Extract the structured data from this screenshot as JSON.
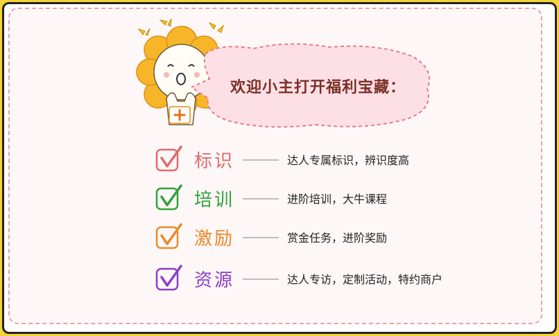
{
  "bubble_text": "欢迎小主打开福利宝藏：",
  "colors": {
    "background": "#f5d33a",
    "card_border": "#e7a2a6",
    "bubble_fill": "#fde0e6",
    "bubble_border": "#e87a8c"
  },
  "benefits": [
    {
      "title": "标识",
      "desc": "达人专属标识，辨识度高",
      "color": "#e06b6b",
      "icon": "check-box-icon"
    },
    {
      "title": "培训",
      "desc": "进阶培训，大牛课程",
      "color": "#2fa33a",
      "icon": "check-box-icon"
    },
    {
      "title": "激励",
      "desc": "赏金任务，进阶奖励",
      "color": "#ea8a2a",
      "icon": "check-box-icon"
    },
    {
      "title": "资源",
      "desc": "达人专访，定制活动，特约商户",
      "color": "#8b3fc9",
      "icon": "check-box-icon"
    }
  ]
}
